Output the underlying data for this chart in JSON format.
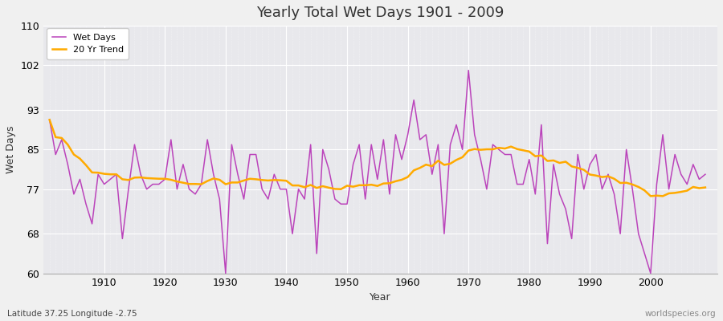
{
  "title": "Yearly Total Wet Days 1901 - 2009",
  "xlabel": "Year",
  "ylabel": "Wet Days",
  "subtitle": "Latitude 37.25 Longitude -2.75",
  "watermark": "worldspecies.org",
  "line_color": "#bb44bb",
  "trend_color": "#ffaa00",
  "background_color": "#f0f0f0",
  "plot_bg_color": "#e8e8ec",
  "ylim": [
    60,
    110
  ],
  "yticks": [
    60,
    68,
    77,
    85,
    93,
    102,
    110
  ],
  "years": [
    1901,
    1902,
    1903,
    1904,
    1905,
    1906,
    1907,
    1908,
    1909,
    1910,
    1911,
    1912,
    1913,
    1914,
    1915,
    1916,
    1917,
    1918,
    1919,
    1920,
    1921,
    1922,
    1923,
    1924,
    1925,
    1926,
    1927,
    1928,
    1929,
    1930,
    1931,
    1932,
    1933,
    1934,
    1935,
    1936,
    1937,
    1938,
    1939,
    1940,
    1941,
    1942,
    1943,
    1944,
    1945,
    1946,
    1947,
    1948,
    1949,
    1950,
    1951,
    1952,
    1953,
    1954,
    1955,
    1956,
    1957,
    1958,
    1959,
    1960,
    1961,
    1962,
    1963,
    1964,
    1965,
    1966,
    1967,
    1968,
    1969,
    1970,
    1971,
    1972,
    1973,
    1974,
    1975,
    1976,
    1977,
    1978,
    1979,
    1980,
    1981,
    1982,
    1983,
    1984,
    1985,
    1986,
    1987,
    1988,
    1989,
    1990,
    1991,
    1992,
    1993,
    1994,
    1995,
    1996,
    1997,
    1998,
    1999,
    2000,
    2001,
    2002,
    2003,
    2004,
    2005,
    2006,
    2007,
    2008,
    2009
  ],
  "wet_days": [
    91,
    84,
    87,
    82,
    76,
    79,
    74,
    70,
    80,
    78,
    79,
    80,
    67,
    77,
    86,
    80,
    77,
    78,
    78,
    79,
    87,
    77,
    82,
    77,
    76,
    78,
    87,
    80,
    75,
    60,
    86,
    80,
    75,
    84,
    84,
    77,
    75,
    80,
    77,
    77,
    68,
    77,
    75,
    86,
    64,
    85,
    81,
    75,
    74,
    74,
    82,
    86,
    75,
    86,
    79,
    87,
    76,
    88,
    83,
    88,
    95,
    87,
    88,
    80,
    86,
    68,
    86,
    90,
    85,
    101,
    88,
    83,
    77,
    86,
    85,
    84,
    84,
    78,
    78,
    83,
    76,
    90,
    66,
    82,
    76,
    73,
    67,
    84,
    77,
    82,
    84,
    77,
    80,
    76,
    68,
    85,
    77,
    68,
    64,
    60,
    78,
    88,
    77,
    84,
    80,
    78,
    82,
    79,
    80
  ],
  "legend_wet_days": "Wet Days",
  "legend_trend": "20 Yr Trend"
}
